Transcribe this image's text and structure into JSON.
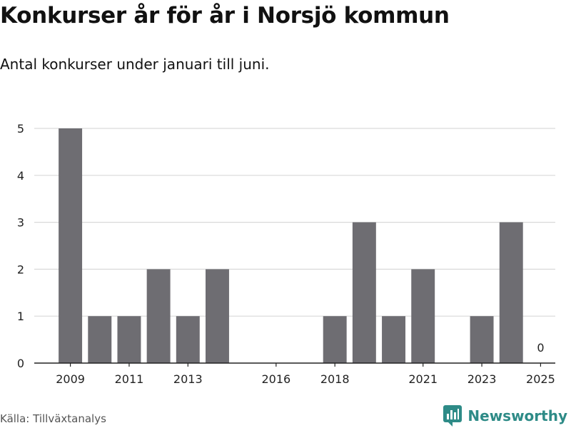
{
  "title": "Konkurser år för år i Norsjö kommun",
  "subtitle": "Antal konkurser under januari till juni.",
  "source": "Källa: Tillväxtanalys",
  "brand": {
    "name": "Newsworthy",
    "icon": "newsworthy-logo-icon",
    "color": "#2e8b87"
  },
  "chart_data": {
    "type": "bar",
    "categories": [
      "2009",
      "2010",
      "2011",
      "2012",
      "2013",
      "2014",
      "2015",
      "2016",
      "2017",
      "2018",
      "2019",
      "2020",
      "2021",
      "2022",
      "2023",
      "2024",
      "2025"
    ],
    "values": [
      5,
      1,
      1,
      2,
      1,
      2,
      0,
      0,
      0,
      1,
      3,
      1,
      2,
      0,
      1,
      3,
      0
    ],
    "xticks": [
      "2009",
      "2011",
      "2013",
      "2016",
      "2018",
      "2021",
      "2023",
      "2025"
    ],
    "yticks": [
      0,
      1,
      2,
      3,
      4,
      5
    ],
    "ylim": [
      0,
      5
    ],
    "bar_color": "#6e6d72",
    "grid": true,
    "annotations": [
      {
        "x": "2025",
        "text": "0"
      }
    ]
  }
}
